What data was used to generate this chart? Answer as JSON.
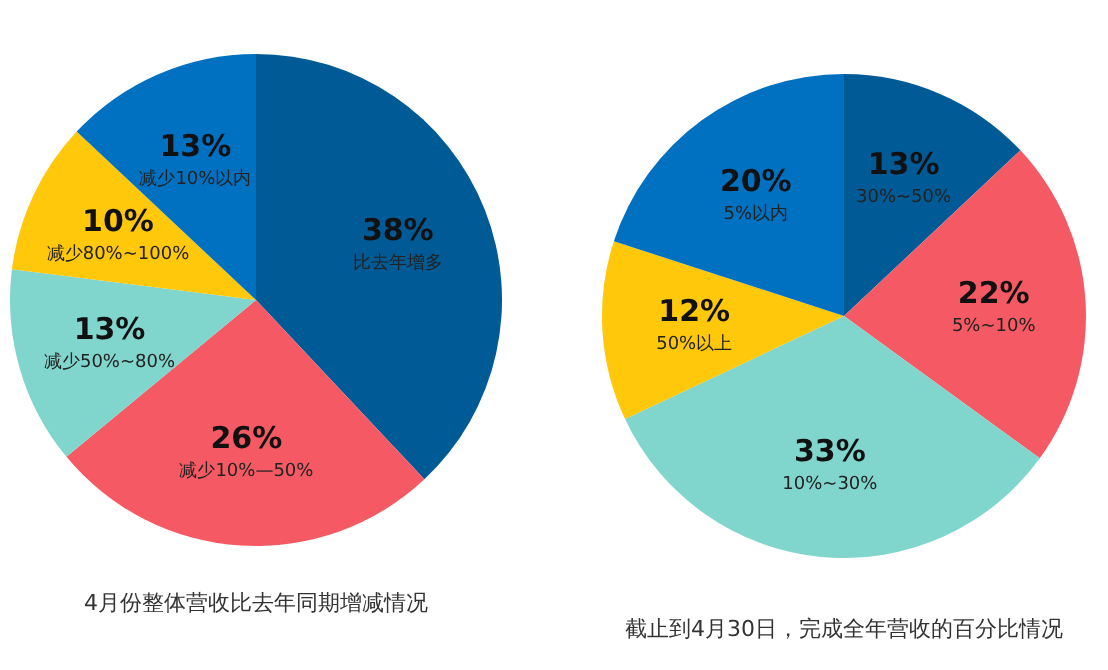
{
  "chart_data": [
    {
      "type": "pie",
      "title": "4月份整体营收比去年同期增减情况",
      "categories": [
        "比去年增多",
        "减少10%—50%",
        "减少50%~80%",
        "减少80%~100%",
        "减少10%以内"
      ],
      "values": [
        38,
        26,
        13,
        10,
        13
      ],
      "value_labels": [
        "38%",
        "26%",
        "13%",
        "10%",
        "13%"
      ],
      "colors": [
        "#005a96",
        "#f55a64",
        "#80d5cc",
        "#ffc80a",
        "#0070c0"
      ]
    },
    {
      "type": "pie",
      "title": "截止到4月30日，完成全年营收的百分比情况",
      "categories": [
        "30%~50%",
        "5%~10%",
        "10%~30%",
        "50%以上",
        "5%以内"
      ],
      "values": [
        13,
        22,
        33,
        12,
        20
      ],
      "value_labels": [
        "13%",
        "22%",
        "33%",
        "12%",
        "20%"
      ],
      "colors": [
        "#005a96",
        "#f55a64",
        "#80d5cc",
        "#ffc80a",
        "#0070c0"
      ]
    }
  ]
}
